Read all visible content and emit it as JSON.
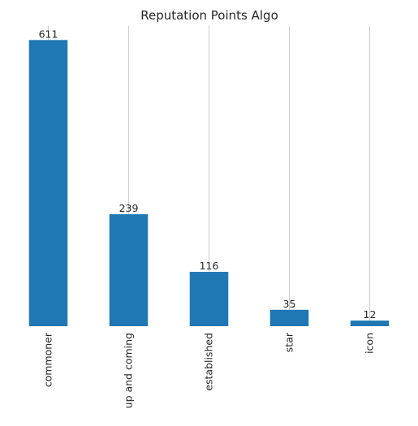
{
  "chart_data": {
    "type": "bar",
    "title": "Reputation Points Algo",
    "categories": [
      "commoner",
      "up and coming",
      "established",
      "star",
      "icon"
    ],
    "values": [
      611,
      239,
      116,
      35,
      12
    ],
    "data_labels": [
      "611",
      "239",
      "116",
      "35",
      "12"
    ],
    "xlabel": "",
    "ylabel": "",
    "ylim": [
      0,
      641
    ],
    "grid": "vertical",
    "legend": "none",
    "bar_color": "#1f77b4",
    "grid_color": "#cccccc",
    "text_color": "#262626"
  }
}
